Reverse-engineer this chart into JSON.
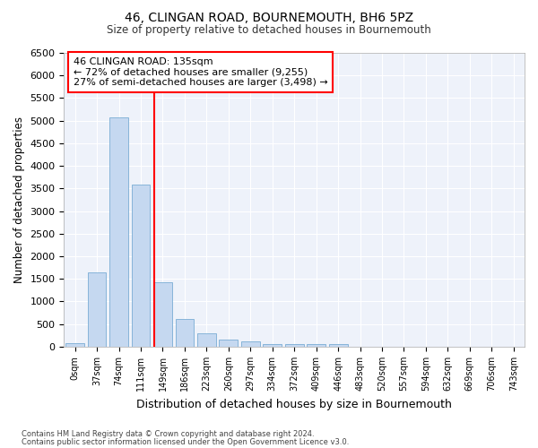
{
  "title": "46, CLINGAN ROAD, BOURNEMOUTH, BH6 5PZ",
  "subtitle": "Size of property relative to detached houses in Bournemouth",
  "xlabel": "Distribution of detached houses by size in Bournemouth",
  "ylabel": "Number of detached properties",
  "bar_color": "#c5d8f0",
  "bar_edge_color": "#7aadd4",
  "background_color": "#eef2fa",
  "grid_color": "#ffffff",
  "categories": [
    "0sqm",
    "37sqm",
    "74sqm",
    "111sqm",
    "149sqm",
    "186sqm",
    "223sqm",
    "260sqm",
    "297sqm",
    "334sqm",
    "372sqm",
    "409sqm",
    "446sqm",
    "483sqm",
    "520sqm",
    "557sqm",
    "594sqm",
    "632sqm",
    "669sqm",
    "706sqm",
    "743sqm"
  ],
  "values": [
    75,
    1640,
    5080,
    3580,
    1420,
    620,
    305,
    155,
    110,
    60,
    60,
    60,
    60,
    0,
    0,
    0,
    0,
    0,
    0,
    0,
    0
  ],
  "ylim": [
    0,
    6500
  ],
  "yticks": [
    0,
    500,
    1000,
    1500,
    2000,
    2500,
    3000,
    3500,
    4000,
    4500,
    5000,
    5500,
    6000,
    6500
  ],
  "red_line_x": 3.62,
  "annotation_text": "46 CLINGAN ROAD: 135sqm\n← 72% of detached houses are smaller (9,255)\n27% of semi-detached houses are larger (3,498) →",
  "footer_line1": "Contains HM Land Registry data © Crown copyright and database right 2024.",
  "footer_line2": "Contains public sector information licensed under the Open Government Licence v3.0."
}
